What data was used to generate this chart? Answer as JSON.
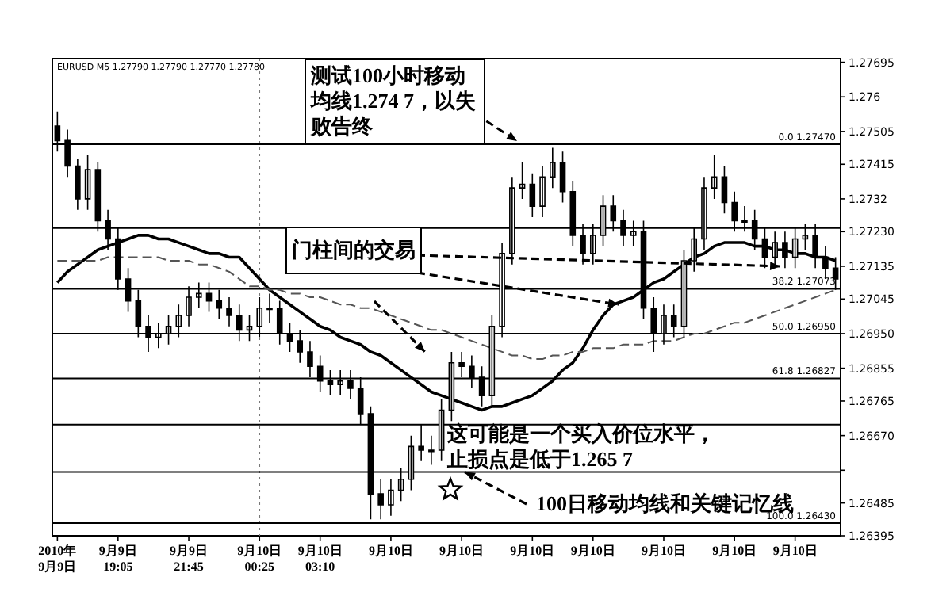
{
  "chart_data": {
    "type": "candlestick",
    "subtitle": "EURUSD M5 1.27790 1.27790 1.27770 1.27780",
    "color": "#000000",
    "categories": [
      "2010年 9月9日",
      null,
      null,
      null,
      null,
      null,
      "9月9日 19:05",
      null,
      null,
      null,
      null,
      null,
      null,
      "9月9日 21:45",
      null,
      null,
      null,
      null,
      null,
      null,
      "9月10日 00:25",
      null,
      null,
      null,
      null,
      null,
      "9月10日 03:10",
      null,
      null,
      null,
      null,
      null,
      null,
      "9月10日",
      null,
      null,
      null,
      null,
      null,
      null,
      "9月10日",
      null,
      null,
      null,
      null,
      null,
      null,
      "9月10日",
      null,
      null,
      null,
      null,
      null,
      "9月10日",
      null,
      null,
      null,
      null,
      null,
      null,
      "9月10日",
      null,
      null,
      null,
      null,
      null,
      null,
      "9月10日",
      null,
      null,
      null,
      null,
      null,
      "9月10日",
      null,
      null,
      null,
      null
    ],
    "ohlc": [
      [
        1.2752,
        1.2756,
        1.2745,
        1.2748
      ],
      [
        1.2748,
        1.2751,
        1.2738,
        1.2741
      ],
      [
        1.2741,
        1.2743,
        1.2729,
        1.2732
      ],
      [
        1.2732,
        1.2744,
        1.2729,
        1.274
      ],
      [
        1.274,
        1.2742,
        1.2723,
        1.2726
      ],
      [
        1.2726,
        1.2729,
        1.2718,
        1.2721
      ],
      [
        1.2721,
        1.2724,
        1.2707,
        1.271
      ],
      [
        1.271,
        1.2713,
        1.2701,
        1.2704
      ],
      [
        1.2704,
        1.2707,
        1.2694,
        1.2697
      ],
      [
        1.2697,
        1.27,
        1.269,
        1.2694
      ],
      [
        1.2694,
        1.2698,
        1.2691,
        1.2695
      ],
      [
        1.2695,
        1.27,
        1.2692,
        1.2697
      ],
      [
        1.2697,
        1.2703,
        1.2694,
        1.27
      ],
      [
        1.27,
        1.2708,
        1.2697,
        1.2705
      ],
      [
        1.2705,
        1.2709,
        1.2702,
        1.2706
      ],
      [
        1.2706,
        1.2709,
        1.2701,
        1.2704
      ],
      [
        1.2704,
        1.2707,
        1.2699,
        1.2702
      ],
      [
        1.2702,
        1.2705,
        1.2697,
        1.27
      ],
      [
        1.27,
        1.2703,
        1.2693,
        1.2696
      ],
      [
        1.2696,
        1.27,
        1.2693,
        1.2697
      ],
      [
        1.2697,
        1.2705,
        1.2694,
        1.2702
      ],
      [
        1.2702,
        1.2706,
        1.2698,
        1.2702
      ],
      [
        1.2702,
        1.2704,
        1.2692,
        1.2695
      ],
      [
        1.2695,
        1.2698,
        1.269,
        1.2693
      ],
      [
        1.2693,
        1.2696,
        1.2687,
        1.269
      ],
      [
        1.269,
        1.2693,
        1.2683,
        1.2686
      ],
      [
        1.2686,
        1.2689,
        1.2679,
        1.2682
      ],
      [
        1.2682,
        1.2685,
        1.2678,
        1.2681
      ],
      [
        1.2681,
        1.2685,
        1.2678,
        1.2682
      ],
      [
        1.2682,
        1.2685,
        1.2677,
        1.268
      ],
      [
        1.268,
        1.2683,
        1.267,
        1.2673
      ],
      [
        1.2673,
        1.2675,
        1.2644,
        1.2651
      ],
      [
        1.2651,
        1.2655,
        1.2644,
        1.2648
      ],
      [
        1.2648,
        1.2655,
        1.2645,
        1.2652
      ],
      [
        1.2652,
        1.2658,
        1.2649,
        1.2655
      ],
      [
        1.2655,
        1.2667,
        1.2652,
        1.2664
      ],
      [
        1.2664,
        1.267,
        1.266,
        1.2663
      ],
      [
        1.2663,
        1.2667,
        1.2659,
        1.2663
      ],
      [
        1.2663,
        1.2677,
        1.266,
        1.2674
      ],
      [
        1.2674,
        1.269,
        1.2671,
        1.2687
      ],
      [
        1.2687,
        1.269,
        1.2683,
        1.2686
      ],
      [
        1.2686,
        1.2689,
        1.268,
        1.2683
      ],
      [
        1.2683,
        1.2686,
        1.2675,
        1.2678
      ],
      [
        1.2678,
        1.27,
        1.2675,
        1.2697
      ],
      [
        1.2697,
        1.272,
        1.2694,
        1.2717
      ],
      [
        1.2717,
        1.2738,
        1.2714,
        1.2735
      ],
      [
        1.2735,
        1.2742,
        1.2732,
        1.2736
      ],
      [
        1.2736,
        1.2739,
        1.2727,
        1.273
      ],
      [
        1.273,
        1.2741,
        1.2727,
        1.2738
      ],
      [
        1.2738,
        1.2746,
        1.2735,
        1.2742
      ],
      [
        1.2742,
        1.2745,
        1.2731,
        1.2734
      ],
      [
        1.2734,
        1.2737,
        1.2719,
        1.2722
      ],
      [
        1.2722,
        1.2725,
        1.2714,
        1.2717
      ],
      [
        1.2717,
        1.2725,
        1.2714,
        1.2722
      ],
      [
        1.2722,
        1.2733,
        1.2719,
        1.273
      ],
      [
        1.273,
        1.2733,
        1.2723,
        1.2726
      ],
      [
        1.2726,
        1.2729,
        1.2719,
        1.2722
      ],
      [
        1.2722,
        1.2726,
        1.2719,
        1.2723
      ],
      [
        1.2723,
        1.2726,
        1.2699,
        1.2702
      ],
      [
        1.2702,
        1.2705,
        1.269,
        1.2695
      ],
      [
        1.2695,
        1.2703,
        1.2692,
        1.27
      ],
      [
        1.27,
        1.2703,
        1.2694,
        1.2697
      ],
      [
        1.2697,
        1.2718,
        1.2694,
        1.2715
      ],
      [
        1.2715,
        1.2724,
        1.2712,
        1.2721
      ],
      [
        1.2721,
        1.2738,
        1.2718,
        1.2735
      ],
      [
        1.2735,
        1.2744,
        1.2732,
        1.2738
      ],
      [
        1.2738,
        1.2741,
        1.2728,
        1.2731
      ],
      [
        1.2731,
        1.2734,
        1.2723,
        1.2726
      ],
      [
        1.2726,
        1.273,
        1.2723,
        1.2726
      ],
      [
        1.2726,
        1.2729,
        1.2718,
        1.2721
      ],
      [
        1.2721,
        1.2724,
        1.2713,
        1.2716
      ],
      [
        1.2716,
        1.2723,
        1.2713,
        1.272
      ],
      [
        1.272,
        1.2723,
        1.2713,
        1.2716
      ],
      [
        1.2716,
        1.2724,
        1.2713,
        1.2721
      ],
      [
        1.2721,
        1.2725,
        1.2718,
        1.2722
      ],
      [
        1.2722,
        1.2725,
        1.2713,
        1.2716
      ],
      [
        1.2716,
        1.2719,
        1.271,
        1.2713
      ],
      [
        1.2713,
        1.2716,
        1.2707,
        1.271
      ]
    ],
    "series": [
      {
        "type": "line",
        "color": "#000000",
        "line_style": "solid",
        "values": [
          1.2709,
          1.2712,
          1.2714,
          1.2716,
          1.2718,
          1.2719,
          1.272,
          1.2721,
          1.2722,
          1.2722,
          1.2721,
          1.2721,
          1.272,
          1.2719,
          1.2718,
          1.2717,
          1.2717,
          1.2716,
          1.2716,
          1.2713,
          1.271,
          1.2707,
          1.2705,
          1.2703,
          1.2701,
          1.2699,
          1.2697,
          1.2696,
          1.2694,
          1.2693,
          1.2692,
          1.269,
          1.2689,
          1.2687,
          1.2685,
          1.2683,
          1.2681,
          1.2679,
          1.2678,
          1.2677,
          1.2676,
          1.2675,
          1.2674,
          1.2675,
          1.2675,
          1.2676,
          1.2677,
          1.2678,
          1.268,
          1.2682,
          1.2685,
          1.2687,
          1.2691,
          1.2696,
          1.27,
          1.2703,
          1.2704,
          1.2705,
          1.2707,
          1.2709,
          1.271,
          1.2712,
          1.2714,
          1.2716,
          1.2717,
          1.2719,
          1.272,
          1.272,
          1.272,
          1.2719,
          1.2719,
          1.2718,
          1.2718,
          1.2717,
          1.2717,
          1.2716,
          1.2716,
          1.2715
        ]
      },
      {
        "type": "line",
        "color": "#555555",
        "line_style": "dashed",
        "values": [
          1.2715,
          1.2715,
          1.2715,
          1.2715,
          1.2715,
          1.2716,
          1.2716,
          1.2716,
          1.2716,
          1.2716,
          1.2716,
          1.2715,
          1.2715,
          1.2715,
          1.2714,
          1.2714,
          1.2713,
          1.2712,
          1.271,
          1.2708,
          1.2708,
          1.2707,
          1.2707,
          1.2706,
          1.2706,
          1.2705,
          1.2705,
          1.2704,
          1.2703,
          1.2703,
          1.2702,
          1.2702,
          1.2701,
          1.27,
          1.2699,
          1.2698,
          1.2697,
          1.2696,
          1.2696,
          1.2695,
          1.2694,
          1.2693,
          1.2692,
          1.2691,
          1.269,
          1.2689,
          1.2689,
          1.2688,
          1.2688,
          1.2689,
          1.2689,
          1.269,
          1.269,
          1.2691,
          1.2691,
          1.2691,
          1.2692,
          1.2692,
          1.2692,
          1.2693,
          1.2693,
          1.2693,
          1.2694,
          1.2695,
          1.2695,
          1.2696,
          1.2697,
          1.2698,
          1.2698,
          1.2699,
          1.27,
          1.2701,
          1.2702,
          1.2703,
          1.2704,
          1.2705,
          1.2706,
          1.2707
        ]
      }
    ],
    "ylim": [
      1.26395,
      1.27705
    ],
    "yticks": [
      1.27695,
      1.276,
      {
        "value": 1.27505,
        "label": "1.27505"
      },
      1.27415,
      1.2732,
      {
        "value": 1.2723,
        "label": "1.27230"
      },
      1.27135,
      1.27045,
      {
        "value": 1.2695,
        "label": "1.26950"
      },
      1.26855,
      1.26765,
      {
        "value": 1.2667,
        "label": "1.26670"
      },
      {
        "value": 1.26575,
        "label": null
      },
      1.26485,
      1.26395
    ],
    "ref_lines": [
      {
        "axis": "x",
        "value": "9月10日 00:25",
        "line_style": "dotted",
        "color": "#777777"
      },
      {
        "axis": "y",
        "value": 1.2747,
        "label": "0.0  1.27470",
        "color": "#000000"
      },
      {
        "axis": "y",
        "value": 1.2724,
        "color": "#000000"
      },
      {
        "axis": "y",
        "value": 1.27073,
        "label": "38.2  1.27073",
        "color": "#000000"
      },
      {
        "axis": "y",
        "value": 1.2695,
        "label": "50.0  1.26950",
        "color": "#000000"
      },
      {
        "axis": "y",
        "value": 1.26827,
        "label": "61.8  1.26827",
        "color": "#000000"
      },
      {
        "axis": "y",
        "value": 1.267,
        "color": "#000000"
      },
      {
        "axis": "y",
        "value": 1.2657,
        "color": "#000000"
      },
      {
        "axis": "y",
        "value": 1.2643,
        "label": "100.0  1.26430",
        "color": "#000000"
      }
    ],
    "annotations": [
      {
        "text": "测试100小时移动均线1.274 7，以失败告终",
        "y": 1.2747
      },
      {
        "text": "门柱间的交易",
        "y": 1.2703
      },
      "这可能是一个买入价位水平，止损点是低于1.265 7",
      {
        "text": "100日移动均线和关键记忆线",
        "y": 1.2657
      }
    ]
  }
}
